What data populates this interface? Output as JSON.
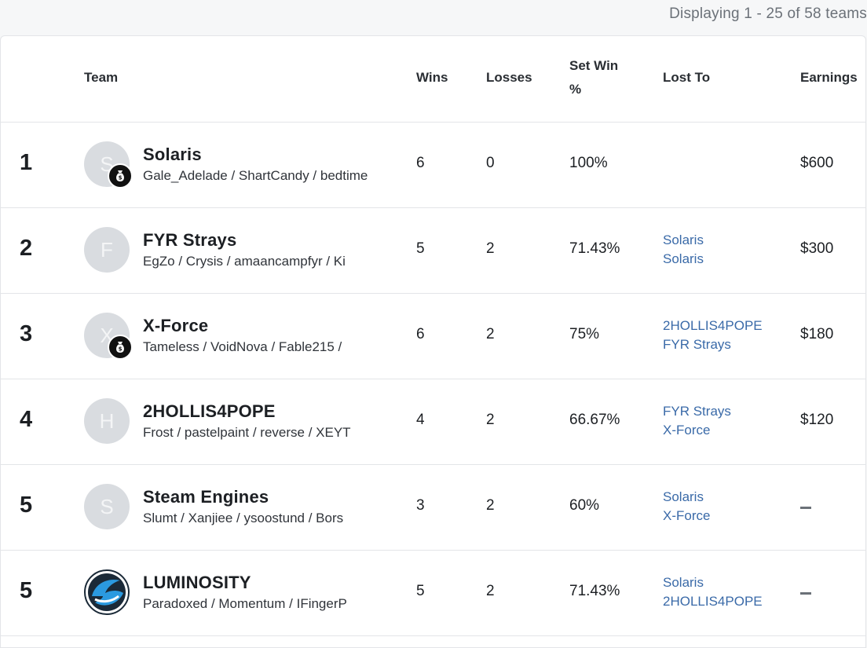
{
  "display_count": "Displaying 1 - 25 of 58 teams",
  "columns": {
    "team": "Team",
    "wins": "Wins",
    "losses": "Losses",
    "set_win": "Set Win %",
    "lost_to": "Lost To",
    "earnings": "Earnings"
  },
  "rows": [
    {
      "rank": "1",
      "avatar_letter": "S",
      "avatar_badge": "money-bag-icon",
      "name": "Solaris",
      "players": "Gale_Adelade / ShartCandy / bedtime",
      "wins": "6",
      "losses": "0",
      "set_win": "100%",
      "lost_to": [],
      "earnings": "$600"
    },
    {
      "rank": "2",
      "avatar_letter": "F",
      "name": "FYR Strays",
      "players": "EgZo / Crysis / amaancampfyr / Ki",
      "wins": "5",
      "losses": "2",
      "set_win": "71.43%",
      "lost_to": [
        "Solaris",
        "Solaris"
      ],
      "earnings": "$300"
    },
    {
      "rank": "3",
      "avatar_letter": "X",
      "avatar_badge": "money-bag-icon",
      "name": "X-Force",
      "players": "Tameless / VoidNova / Fable215 / ",
      "wins": "6",
      "losses": "2",
      "set_win": "75%",
      "lost_to": [
        "2HOLLIS4POPE",
        "FYR Strays"
      ],
      "earnings": "$180"
    },
    {
      "rank": "4",
      "avatar_letter": "H",
      "name": "2HOLLIS4POPE",
      "players": "Frost / pastelpaint / reverse / XEYT",
      "wins": "4",
      "losses": "2",
      "set_win": "66.67%",
      "lost_to": [
        "FYR Strays",
        "X-Force"
      ],
      "earnings": "$120"
    },
    {
      "rank": "5",
      "avatar_letter": "S",
      "name": "Steam Engines",
      "players": "Slumt / Xanjiee / ysoostund / Bors",
      "wins": "3",
      "losses": "2",
      "set_win": "60%",
      "lost_to": [
        "Solaris",
        "X-Force"
      ],
      "earnings": ""
    },
    {
      "rank": "5",
      "avatar_logo": "luminosity-logo-icon",
      "name": "LUMINOSITY",
      "players": "Paradoxed / Momentum / IFingerP",
      "wins": "5",
      "losses": "2",
      "set_win": "71.43%",
      "lost_to": [
        "Solaris",
        "2HOLLIS4POPE"
      ],
      "earnings": ""
    }
  ],
  "colors": {
    "link": "#3a6aa8",
    "avatar_bg": "#d9dce0",
    "luminosity_blue": "#1e88c9"
  }
}
